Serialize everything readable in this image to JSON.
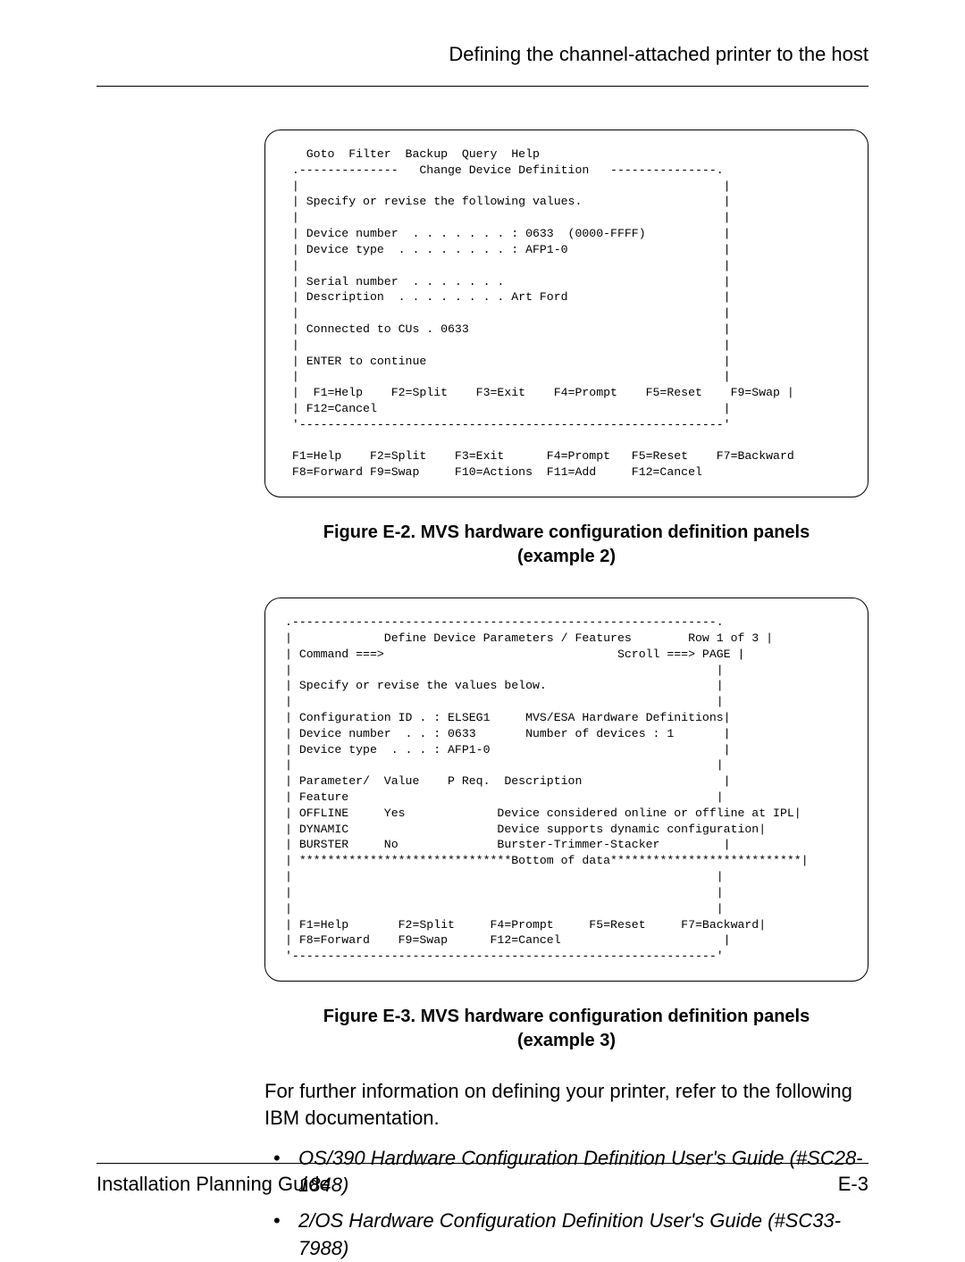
{
  "header": {
    "title": "Defining the channel-attached printer to the host"
  },
  "terminal1": {
    "text": "   Goto  Filter  Backup  Query  Help\n .--------------   Change Device Definition   ---------------.\n |                                                            |\n | Specify or revise the following values.                    |\n |                                                            |\n | Device number  . . . . . . . : 0633  (0000-FFFF)           |\n | Device type  . . . . . . . . : AFP1-0                      |\n |                                                            |\n | Serial number  . . . . . . .                               |\n | Description  . . . . . . . . Art Ford                      |\n |                                                            |\n | Connected to CUs . 0633                                    |\n |                                                            |\n | ENTER to continue                                          |\n |                                                            |\n |  F1=Help    F2=Split    F3=Exit    F4=Prompt    F5=Reset    F9=Swap |\n | F12=Cancel                                                 |\n '------------------------------------------------------------'\n\n F1=Help    F2=Split    F3=Exit      F4=Prompt   F5=Reset    F7=Backward\n F8=Forward F9=Swap     F10=Actions  F11=Add     F12=Cancel"
  },
  "caption1": {
    "line1": "Figure E-2. MVS hardware configuration definition panels",
    "line2": "(example 2)"
  },
  "terminal2": {
    "text": ".------------------------------------------------------------.\n|             Define Device Parameters / Features        Row 1 of 3 |\n| Command ===>                                 Scroll ===> PAGE |\n|                                                            |\n| Specify or revise the values below.                        |\n|                                                            |\n| Configuration ID . : ELSEG1     MVS/ESA Hardware Definitions|\n| Device number  . . : 0633       Number of devices : 1       |\n| Device type  . . . : AFP1-0                                 |\n|                                                            |\n| Parameter/  Value    P Req.  Description                    |\n| Feature                                                    |\n| OFFLINE     Yes             Device considered online or offline at IPL|\n| DYNAMIC                     Device supports dynamic configuration|\n| BURSTER     No              Burster-Trimmer-Stacker         |\n| ******************************Bottom of data***************************|\n|                                                            |\n|                                                            |\n|                                                            |\n| F1=Help       F2=Split     F4=Prompt     F5=Reset     F7=Backward|\n| F8=Forward    F9=Swap      F12=Cancel                       |\n'------------------------------------------------------------'"
  },
  "caption2": {
    "line1": "Figure E-3. MVS hardware configuration definition panels",
    "line2": "(example 3)"
  },
  "paragraph": "For further information on defining your printer, refer to the following IBM documentation.",
  "bullets": [
    "OS/390 Hardware Configuration Definition User's Guide (#SC28-1848)",
    "2/OS Hardware Configuration Definition User's Guide (#SC33-7988)"
  ],
  "footer": {
    "left": "Installation Planning Guide",
    "right": "E-3"
  }
}
